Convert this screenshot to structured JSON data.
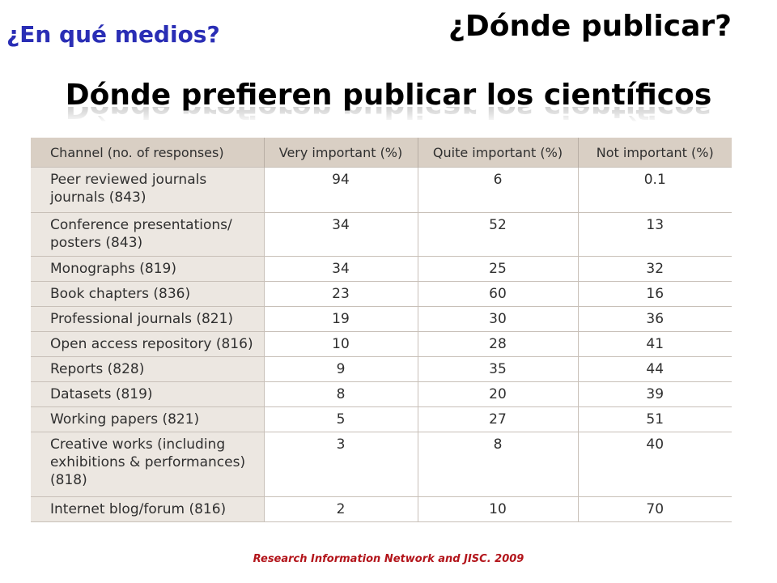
{
  "subtitle": "¿En qué medios?",
  "title": "¿Dónde publicar?",
  "heading": "Dónde prefieren publicar los científicos",
  "table": {
    "headers": [
      "Channel (no. of responses)",
      "Very important (%)",
      "Quite important (%)",
      "Not important (%)"
    ],
    "rows": [
      {
        "channel": "Peer reviewed journals journals (843)",
        "very": "94",
        "quite": "6",
        "not": "0.1"
      },
      {
        "channel": "Conference presentations/ posters (843)",
        "very": "34",
        "quite": "52",
        "not": "13"
      },
      {
        "channel": "Monographs (819)",
        "very": "34",
        "quite": "25",
        "not": "32"
      },
      {
        "channel": "Book chapters (836)",
        "very": "23",
        "quite": "60",
        "not": "16"
      },
      {
        "channel": "Professional journals (821)",
        "very": "19",
        "quite": "30",
        "not": "36"
      },
      {
        "channel": "Open access repository (816)",
        "very": "10",
        "quite": "28",
        "not": "41"
      },
      {
        "channel": "Reports (828)",
        "very": "9",
        "quite": "35",
        "not": "44"
      },
      {
        "channel": "Datasets (819)",
        "very": "8",
        "quite": "20",
        "not": "39"
      },
      {
        "channel": "Working papers (821)",
        "very": "5",
        "quite": "27",
        "not": "51"
      },
      {
        "channel": "Creative works (including exhibitions & performances) (818)",
        "very": "3",
        "quite": "8",
        "not": "40"
      },
      {
        "channel": "Internet blog/forum (816)",
        "very": "2",
        "quite": "10",
        "not": "70"
      }
    ]
  },
  "source": "Research Information Network and JISC. 2009",
  "colors": {
    "subtitle": "#2a2eb5",
    "source": "#b3151b",
    "header_bg": "#d9cfc4",
    "channel_bg": "#ece7e1"
  }
}
